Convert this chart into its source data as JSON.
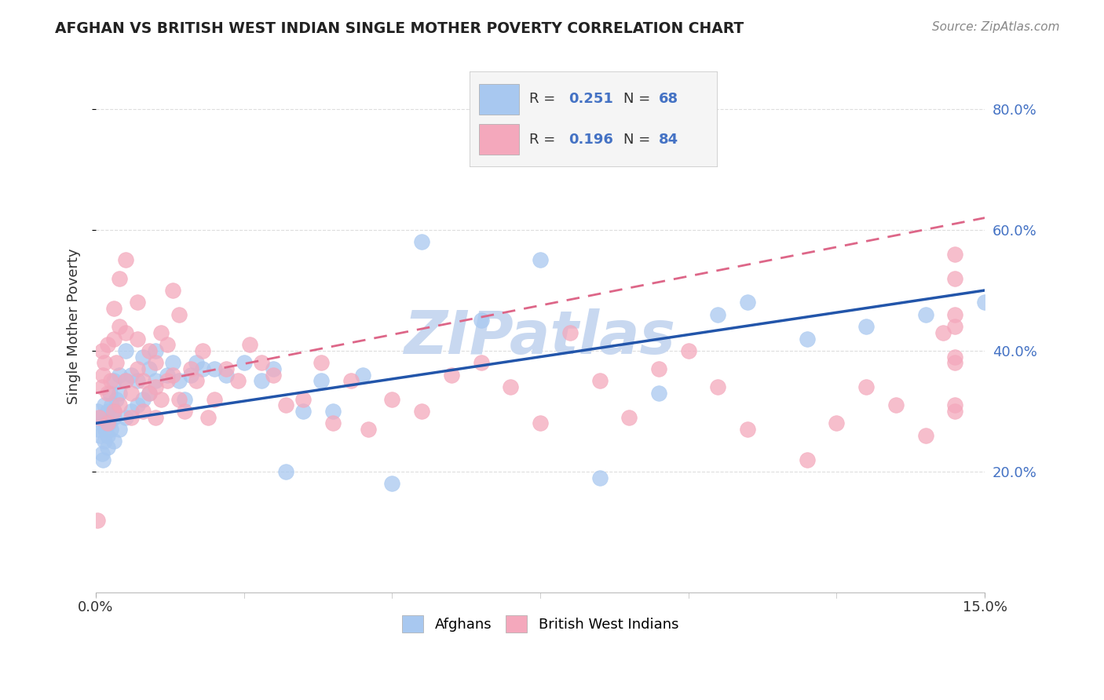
{
  "title": "AFGHAN VS BRITISH WEST INDIAN SINGLE MOTHER POVERTY CORRELATION CHART",
  "source": "Source: ZipAtlas.com",
  "ylabel": "Single Mother Poverty",
  "xlim": [
    0.0,
    0.15
  ],
  "ylim": [
    0.0,
    0.88
  ],
  "x_tick_labels": [
    "0.0%",
    "15.0%"
  ],
  "y_ticks_right": [
    0.2,
    0.4,
    0.6,
    0.8
  ],
  "y_tick_labels_right": [
    "20.0%",
    "40.0%",
    "60.0%",
    "80.0%"
  ],
  "afghan_color": "#A8C8F0",
  "bwi_color": "#F4A8BC",
  "afghan_line_color": "#2255AA",
  "bwi_line_color": "#DD6688",
  "watermark_text": "ZIPatlas",
  "watermark_color": "#C8D8F0",
  "background_color": "#ffffff",
  "grid_color": "#DDDDDD",
  "legend_box_color": "#F5F5F5",
  "legend_box_edge": "#CCCCCC",
  "afghan_x": [
    0.0002,
    0.0004,
    0.0006,
    0.0008,
    0.001,
    0.001,
    0.0012,
    0.0014,
    0.0015,
    0.0016,
    0.0018,
    0.002,
    0.002,
    0.002,
    0.0022,
    0.0024,
    0.0025,
    0.0026,
    0.003,
    0.003,
    0.003,
    0.003,
    0.0035,
    0.004,
    0.004,
    0.004,
    0.005,
    0.005,
    0.005,
    0.006,
    0.006,
    0.007,
    0.007,
    0.008,
    0.008,
    0.009,
    0.009,
    0.01,
    0.01,
    0.012,
    0.013,
    0.014,
    0.015,
    0.016,
    0.017,
    0.018,
    0.02,
    0.022,
    0.025,
    0.028,
    0.03,
    0.032,
    0.035,
    0.038,
    0.04,
    0.045,
    0.05,
    0.055,
    0.065,
    0.075,
    0.085,
    0.095,
    0.105,
    0.11,
    0.12,
    0.13,
    0.14,
    0.15
  ],
  "afghan_y": [
    0.3,
    0.27,
    0.26,
    0.29,
    0.23,
    0.28,
    0.22,
    0.25,
    0.31,
    0.27,
    0.29,
    0.24,
    0.3,
    0.26,
    0.28,
    0.33,
    0.27,
    0.31,
    0.29,
    0.35,
    0.3,
    0.25,
    0.32,
    0.27,
    0.33,
    0.36,
    0.29,
    0.35,
    0.4,
    0.3,
    0.36,
    0.31,
    0.35,
    0.32,
    0.39,
    0.33,
    0.37,
    0.35,
    0.4,
    0.36,
    0.38,
    0.35,
    0.32,
    0.36,
    0.38,
    0.37,
    0.37,
    0.36,
    0.38,
    0.35,
    0.37,
    0.2,
    0.3,
    0.35,
    0.3,
    0.36,
    0.18,
    0.58,
    0.45,
    0.55,
    0.19,
    0.33,
    0.46,
    0.48,
    0.42,
    0.44,
    0.46,
    0.48
  ],
  "bwi_x": [
    0.0002,
    0.0005,
    0.001,
    0.001,
    0.0012,
    0.0015,
    0.002,
    0.002,
    0.002,
    0.0025,
    0.003,
    0.003,
    0.003,
    0.0035,
    0.004,
    0.004,
    0.004,
    0.005,
    0.005,
    0.005,
    0.006,
    0.006,
    0.007,
    0.007,
    0.007,
    0.008,
    0.008,
    0.009,
    0.009,
    0.01,
    0.01,
    0.01,
    0.011,
    0.011,
    0.012,
    0.012,
    0.013,
    0.013,
    0.014,
    0.014,
    0.015,
    0.016,
    0.017,
    0.018,
    0.019,
    0.02,
    0.022,
    0.024,
    0.026,
    0.028,
    0.03,
    0.032,
    0.035,
    0.038,
    0.04,
    0.043,
    0.046,
    0.05,
    0.055,
    0.06,
    0.065,
    0.07,
    0.075,
    0.08,
    0.085,
    0.09,
    0.095,
    0.1,
    0.105,
    0.11,
    0.12,
    0.125,
    0.13,
    0.135,
    0.14,
    0.143,
    0.145,
    0.145,
    0.145,
    0.145,
    0.145,
    0.145,
    0.145,
    0.145
  ],
  "bwi_y": [
    0.12,
    0.29,
    0.34,
    0.4,
    0.36,
    0.38,
    0.33,
    0.41,
    0.28,
    0.35,
    0.3,
    0.42,
    0.47,
    0.38,
    0.31,
    0.44,
    0.52,
    0.55,
    0.35,
    0.43,
    0.33,
    0.29,
    0.37,
    0.42,
    0.48,
    0.35,
    0.3,
    0.33,
    0.4,
    0.29,
    0.34,
    0.38,
    0.32,
    0.43,
    0.35,
    0.41,
    0.36,
    0.5,
    0.32,
    0.46,
    0.3,
    0.37,
    0.35,
    0.4,
    0.29,
    0.32,
    0.37,
    0.35,
    0.41,
    0.38,
    0.36,
    0.31,
    0.32,
    0.38,
    0.28,
    0.35,
    0.27,
    0.32,
    0.3,
    0.36,
    0.38,
    0.34,
    0.28,
    0.43,
    0.35,
    0.29,
    0.37,
    0.4,
    0.34,
    0.27,
    0.22,
    0.28,
    0.34,
    0.31,
    0.26,
    0.43,
    0.38,
    0.31,
    0.46,
    0.52,
    0.39,
    0.44,
    0.3,
    0.56
  ],
  "afghan_regline_x": [
    0.0,
    0.15
  ],
  "afghan_regline_y": [
    0.28,
    0.5
  ],
  "bwi_regline_x": [
    0.0,
    0.15
  ],
  "bwi_regline_y": [
    0.33,
    0.62
  ]
}
